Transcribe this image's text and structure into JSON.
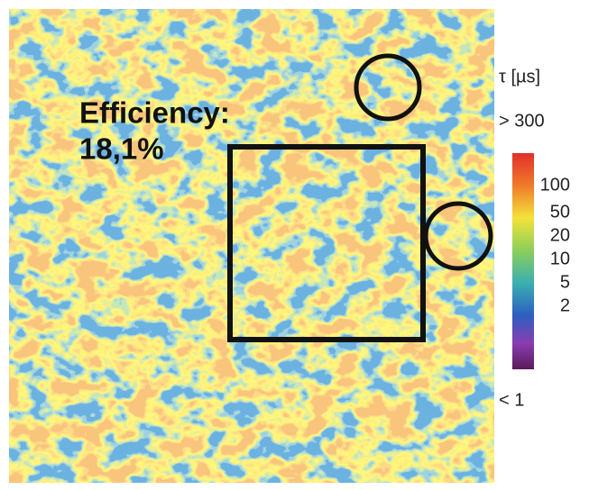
{
  "annotation": {
    "line1": "Efficiency:",
    "line2": "18,1%"
  },
  "colorbar": {
    "title": "τ [µs]",
    "max_label": "> 300",
    "min_label": "< 1",
    "labels": [
      "100",
      "50",
      "20",
      "10",
      "5",
      "2"
    ]
  }
}
